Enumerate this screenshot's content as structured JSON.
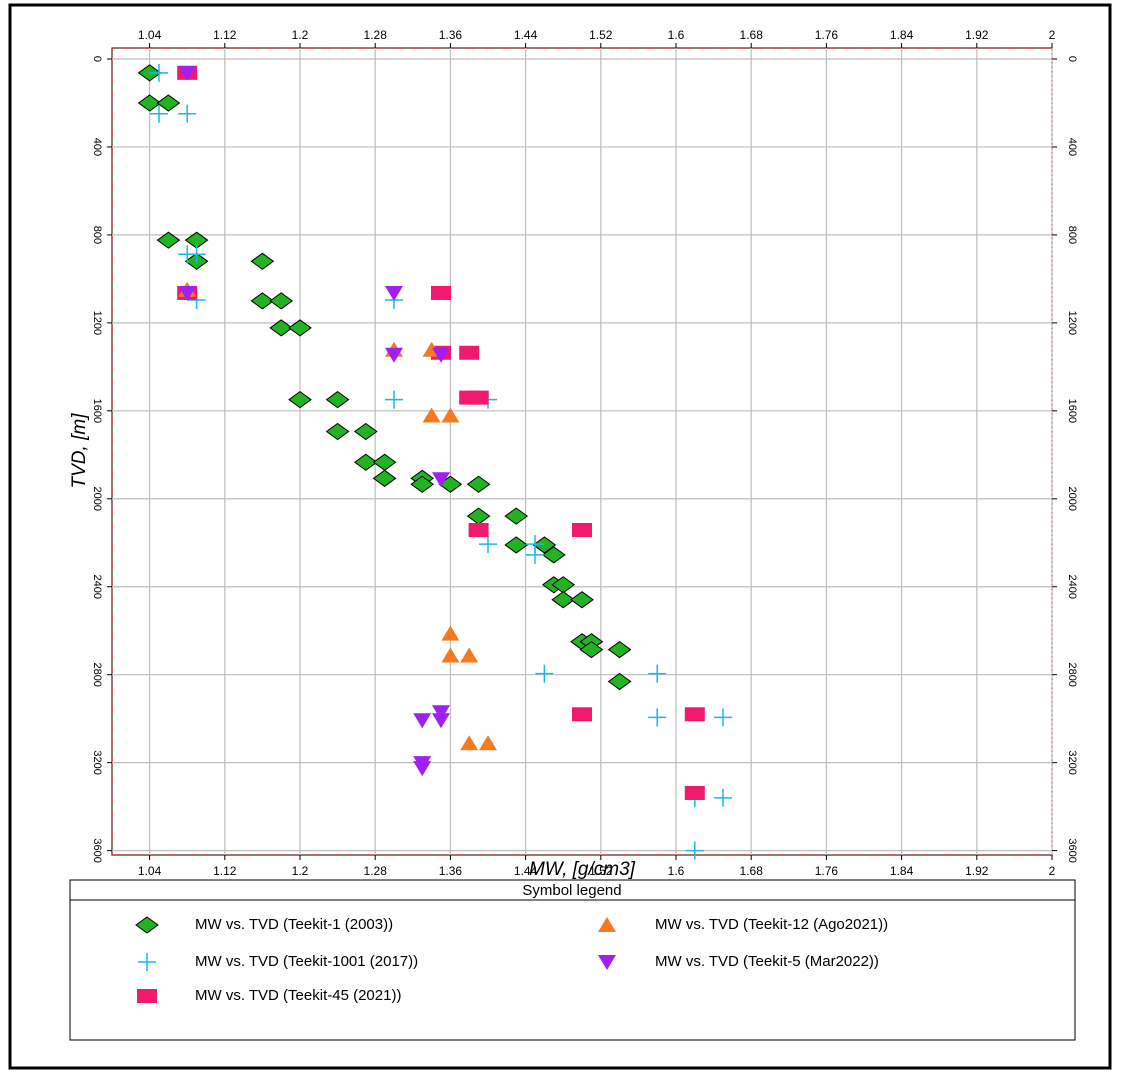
{
  "chart_data": {
    "type": "scatter",
    "xlabel": "MW, [g/cm3]",
    "ylabel": "TVD, [m]",
    "legend_title": "Symbol legend",
    "xlim": [
      1.0,
      2.0
    ],
    "xticks": [
      1.04,
      1.12,
      1.2,
      1.28,
      1.36,
      1.44,
      1.52,
      1.6,
      1.68,
      1.76,
      1.84,
      1.92,
      2
    ],
    "ylim": [
      -50,
      3620
    ],
    "y_reversed": true,
    "yticks": [
      0,
      400,
      800,
      1200,
      1600,
      2000,
      2400,
      2800,
      3200,
      3600
    ],
    "grid": true,
    "series": [
      {
        "name": "MW vs. TVD (Teekit-1 (2003))",
        "color": "#22b322",
        "marker": "diamond",
        "x": [
          1.04,
          1.04,
          1.06,
          1.06,
          1.09,
          1.09,
          1.16,
          1.16,
          1.18,
          1.18,
          1.2,
          1.2,
          1.24,
          1.24,
          1.27,
          1.27,
          1.29,
          1.29,
          1.33,
          1.33,
          1.36,
          1.39,
          1.39,
          1.43,
          1.43,
          1.46,
          1.47,
          1.47,
          1.48,
          1.48,
          1.5,
          1.5,
          1.51,
          1.51,
          1.54,
          1.54
        ],
        "values": [
          63,
          200,
          200,
          824,
          824,
          920,
          920,
          1100,
          1100,
          1223,
          1223,
          1549,
          1549,
          1694,
          1694,
          1834,
          1834,
          1907,
          1907,
          1934,
          1934,
          1934,
          2079,
          2079,
          2210,
          2210,
          2255,
          2391,
          2391,
          2459,
          2459,
          2650,
          2650,
          2686,
          2686,
          2831
        ]
      },
      {
        "name": "MW vs. TVD (Teekit-1001 (2017))",
        "color": "#1ab8e8",
        "marker": "plus",
        "x": [
          1.05,
          1.05,
          1.08,
          1.08,
          1.09,
          1.09,
          1.3,
          1.3,
          1.4,
          1.4,
          1.45,
          1.45,
          1.46,
          1.58,
          1.58,
          1.65,
          1.65,
          1.62,
          1.62
        ],
        "values": [
          63,
          249,
          249,
          888,
          888,
          1096,
          1096,
          1549,
          1549,
          2206,
          2206,
          2255,
          2795,
          2795,
          2994,
          2994,
          3360,
          3360,
          3600
        ]
      },
      {
        "name": "MW vs. TVD (Teekit-45 (2021))",
        "color": "#f0196e",
        "marker": "square",
        "x": [
          1.08,
          1.08,
          1.35,
          1.35,
          1.38,
          1.38,
          1.39,
          1.39,
          1.5,
          1.5,
          1.62,
          1.62
        ],
        "values": [
          63,
          1064,
          1064,
          1336,
          1336,
          1540,
          1540,
          2142,
          2142,
          2980,
          2980,
          3338
        ]
      },
      {
        "name": "MW vs. TVD (Teekit-12 (Ago2021))",
        "color": "#f47a20",
        "marker": "triangle-up",
        "x": [
          1.08,
          1.3,
          1.34,
          1.34,
          1.36,
          1.36,
          1.36,
          1.38,
          1.38,
          1.4
        ],
        "values": [
          1050,
          1322,
          1322,
          1621,
          1621,
          2613,
          2713,
          2713,
          3112,
          3112
        ]
      },
      {
        "name": "MW vs. TVD (Teekit-5 (Mar2022))",
        "color": "#a020f0",
        "marker": "triangle-down",
        "x": [
          1.08,
          1.08,
          1.3,
          1.3,
          1.35,
          1.35,
          1.33,
          1.35,
          1.35,
          1.33,
          1.33
        ],
        "values": [
          63,
          1064,
          1064,
          1345,
          1345,
          1911,
          3007,
          3007,
          2971,
          3202,
          3225
        ]
      }
    ]
  }
}
